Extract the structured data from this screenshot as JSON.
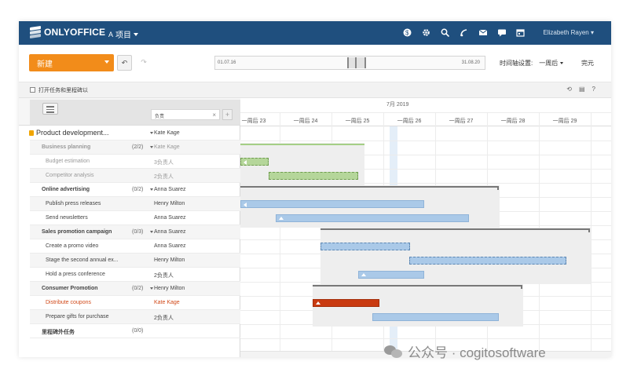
{
  "app": {
    "brand": "ONLYOFFICE",
    "module": "项目",
    "user_name": "Elizabeth Rayen",
    "top_icons": [
      "dollar-icon",
      "gear-icon",
      "search-icon",
      "feed-icon",
      "mail-icon",
      "chat-icon",
      "calendar-icon"
    ]
  },
  "toolbar": {
    "new_label": "新建",
    "undo_glyph": "↶",
    "redo_glyph": "↷",
    "date_start": "01.07.16",
    "date_end": "31.08.20",
    "zoom_label": "时间轴设置:",
    "zoom_value": "一周后",
    "complete_label": "完元"
  },
  "options": {
    "show_label": "打开任务和里程碑以"
  },
  "table": {
    "owner_filter": "负责",
    "rows": [
      {
        "name": "Product development...",
        "progress": "",
        "resp": "Kate Kage",
        "level": 0
      },
      {
        "name": "Business planning",
        "progress": "(2/2)",
        "resp": "Kate Kage",
        "level": 1,
        "dim": true
      },
      {
        "name": "Budget estimation",
        "progress": "",
        "resp": "3负责人",
        "level": 2,
        "dim": true
      },
      {
        "name": "Competitor analysis",
        "progress": "",
        "resp": "2负责人",
        "level": 2,
        "dim": true
      },
      {
        "name": "Online advertising",
        "progress": "(0/2)",
        "resp": "Anna Suarez",
        "level": 1
      },
      {
        "name": "Publish press releases",
        "progress": "",
        "resp": "Henry Milton",
        "level": 2
      },
      {
        "name": "Send newsletters",
        "progress": "",
        "resp": "Anna Suarez",
        "level": 2
      },
      {
        "name": "Sales promotion campaign",
        "progress": "(0/3)",
        "resp": "Anna Suarez",
        "level": 1
      },
      {
        "name": "Create a promo video",
        "progress": "",
        "resp": "Anna Suarez",
        "level": 2
      },
      {
        "name": "Stage the second annual ex...",
        "progress": "",
        "resp": "Henry Milton",
        "level": 2
      },
      {
        "name": "Hold a press conference",
        "progress": "",
        "resp": "2负责人",
        "level": 2
      },
      {
        "name": "Consumer Promotion",
        "progress": "(0/2)",
        "resp": "Henry Milton",
        "level": 1
      },
      {
        "name": "Distribute coupons",
        "progress": "",
        "resp": "Kate Kage",
        "level": 2,
        "red": true
      },
      {
        "name": "Prepare gifts for purchase",
        "progress": "",
        "resp": "2负责人",
        "level": 2
      },
      {
        "name": "里程碑外任务",
        "progress": "(0/0)",
        "resp": "",
        "level": 1
      }
    ]
  },
  "gantt": {
    "month": "7月 2019",
    "weeks": [
      "一周后 23",
      "一周后 24",
      "一周后 25",
      "一周后 26",
      "一周后 27",
      "一周后 28",
      "一周后 29"
    ]
  },
  "watermark": {
    "text": "公众号 · cogitosoftware"
  },
  "colors": {
    "header_bg": "#1f4f7e",
    "accent_orange": "#f28c1a",
    "bar_blue": "#aac9e8",
    "bar_green": "#b5d69a",
    "bar_overdue": "#c93a10"
  }
}
